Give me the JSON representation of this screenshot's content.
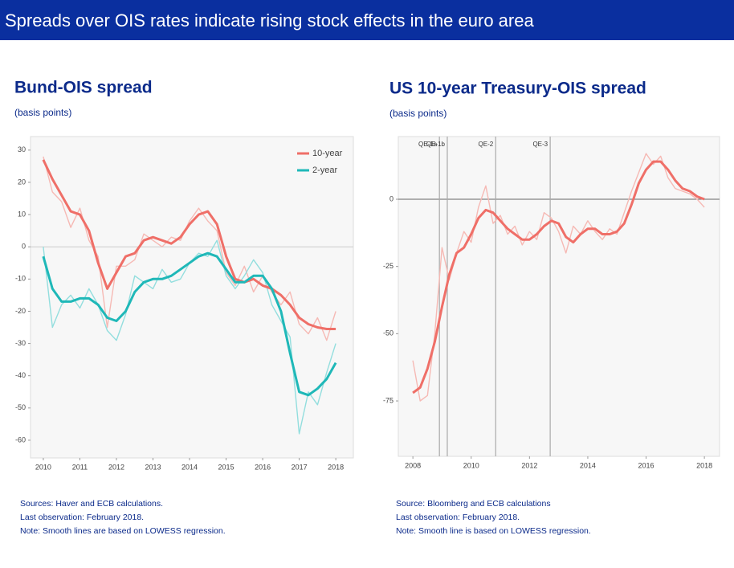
{
  "header": {
    "title": "Spreads over OIS rates indicate rising stock effects in the euro area"
  },
  "chart_data": [
    {
      "type": "line",
      "title": "Bund-OIS spread",
      "subtitle": "(basis points)",
      "x": [
        2010,
        2010.25,
        2010.5,
        2010.75,
        2011,
        2011.25,
        2011.5,
        2011.75,
        2012,
        2012.25,
        2012.5,
        2012.75,
        2013,
        2013.25,
        2013.5,
        2013.75,
        2014,
        2014.25,
        2014.5,
        2014.75,
        2015,
        2015.25,
        2015.5,
        2015.75,
        2016,
        2016.25,
        2016.5,
        2016.75,
        2017,
        2017.25,
        2017.5,
        2017.75,
        2018
      ],
      "series": [
        {
          "color": "#f6b9b4",
          "values": [
            28,
            17,
            14,
            6,
            12,
            2,
            -3,
            -25,
            -6,
            -6,
            -4,
            4,
            2,
            0,
            3,
            2,
            8,
            12,
            8,
            5,
            -8,
            -12,
            -6,
            -14,
            -9,
            -14,
            -18,
            -14,
            -24,
            -27,
            -22,
            -29,
            -20
          ]
        },
        {
          "color": "#93dede",
          "values": [
            0,
            -25,
            -18,
            -15,
            -19,
            -13,
            -18,
            -26,
            -29,
            -21,
            -9,
            -11,
            -13,
            -7,
            -11,
            -10,
            -5,
            -2,
            -3,
            2,
            -9,
            -13,
            -9,
            -4,
            -8,
            -18,
            -23,
            -28,
            -58,
            -45,
            -49,
            -39,
            -30
          ]
        },
        {
          "name": "10-year",
          "color": "#ef6f68",
          "values": [
            27,
            21,
            16,
            11,
            10,
            5,
            -5,
            -13,
            -8,
            -3,
            -2,
            2,
            3,
            2,
            1,
            3,
            7,
            10,
            11,
            7,
            -3,
            -10,
            -11,
            -10,
            -12,
            -13,
            -15,
            -18,
            -22,
            -24,
            -25,
            -25.5,
            -25.5
          ]
        },
        {
          "name": "2-year",
          "color": "#1fb8b8",
          "values": [
            -3,
            -13,
            -17,
            -17,
            -16,
            -16,
            -18,
            -22,
            -23,
            -20,
            -14,
            -11,
            -10,
            -10,
            -9,
            -7,
            -5,
            -3,
            -2,
            -3,
            -7,
            -11,
            -11,
            -9,
            -9,
            -13,
            -20,
            -33,
            -45,
            -46,
            -44,
            -41,
            -36
          ]
        }
      ],
      "xlim": [
        2009.65,
        2018.48
      ],
      "xticks": [
        2010,
        2011,
        2012,
        2013,
        2014,
        2015,
        2016,
        2017,
        2018
      ],
      "ylim": [
        -65.5,
        34.2
      ],
      "yticks": [
        30,
        20,
        10,
        0,
        -10,
        -20,
        -30,
        -40,
        -50,
        -60
      ],
      "zero_line": "#cccccc",
      "legend": "upper right",
      "notes": [
        "Sources: Haver and ECB calculations.",
        "Last observation: February 2018.",
        "Note: Smooth lines are based on LOWESS regression."
      ]
    },
    {
      "type": "line",
      "title": "US 10-year Treasury-OIS spread",
      "subtitle": "(basis points)",
      "x": [
        2008,
        2008.25,
        2008.5,
        2008.75,
        2009,
        2009.25,
        2009.5,
        2009.75,
        2010,
        2010.25,
        2010.5,
        2010.75,
        2011,
        2011.25,
        2011.5,
        2011.75,
        2012,
        2012.25,
        2012.5,
        2012.75,
        2013,
        2013.25,
        2013.5,
        2013.75,
        2014,
        2014.25,
        2014.5,
        2014.75,
        2015,
        2015.25,
        2015.5,
        2015.75,
        2016,
        2016.25,
        2016.5,
        2016.75,
        2017,
        2017.25,
        2017.5,
        2017.75,
        2018
      ],
      "series": [
        {
          "color": "#f6b9b4",
          "values": [
            -60,
            -75,
            -73,
            -50,
            -18,
            -30,
            -20,
            -12,
            -16,
            -3,
            5,
            -9,
            -6,
            -13,
            -10,
            -17,
            -12,
            -15,
            -5,
            -7,
            -12,
            -20,
            -10,
            -13,
            -8,
            -12,
            -15,
            -11,
            -13,
            -5,
            3,
            10,
            17,
            13,
            16,
            8,
            4,
            3,
            2,
            0,
            -3
          ]
        },
        {
          "color": "#ef6f68",
          "values": [
            -72,
            -70,
            -63,
            -53,
            -40,
            -28,
            -20,
            -18,
            -13,
            -7,
            -4,
            -5,
            -8,
            -11,
            -13,
            -15,
            -15,
            -13,
            -10,
            -8,
            -9,
            -14,
            -16,
            -13,
            -11,
            -11,
            -13,
            -13,
            -12,
            -9,
            -2,
            6,
            11,
            14,
            14,
            11,
            7,
            4,
            3,
            1,
            0
          ]
        }
      ],
      "xlim": [
        2007.5,
        2018.52
      ],
      "xticks": [
        2008,
        2010,
        2012,
        2014,
        2016,
        2018
      ],
      "ylim": [
        -95.6,
        23.3
      ],
      "yticks": [
        0,
        -25,
        -50,
        -75
      ],
      "zero_line": "#666666",
      "vlines": [
        {
          "x": 2008.91,
          "label": "QE-1a"
        },
        {
          "x": 2009.18,
          "label": "QE-1b"
        },
        {
          "x": 2010.84,
          "label": "QE-2"
        },
        {
          "x": 2012.71,
          "label": "QE-3"
        }
      ],
      "notes": [
        "Source: Bloomberg and ECB calculations",
        "Last observation: February 2018.",
        "Note: Smooth line is based on LOWESS regression."
      ]
    }
  ]
}
